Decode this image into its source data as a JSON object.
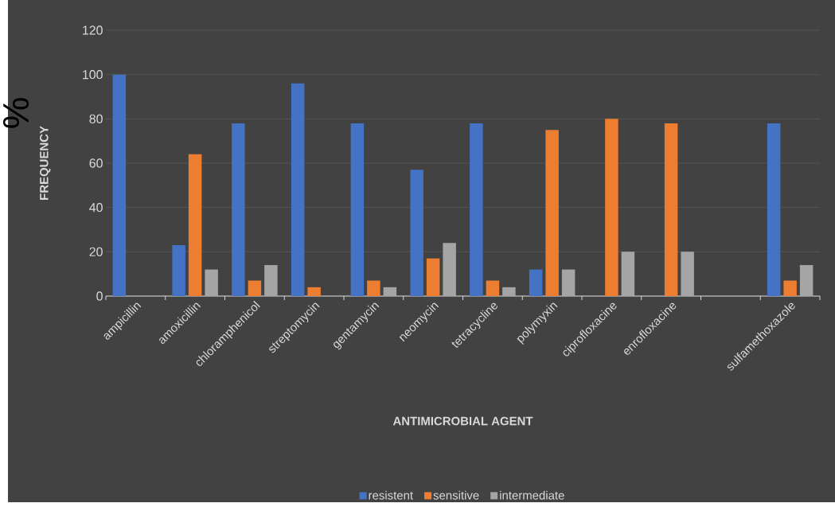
{
  "chart_data": {
    "type": "bar",
    "xlabel": "ANTIMICROBIAL AGENT",
    "ylabel": "FREQUENCY",
    "annotations": [
      "%"
    ],
    "categories": [
      "ampicillin",
      "amoxicillin",
      "chloramphenicol",
      "streptomycin",
      "gentamycin",
      "neomycin",
      "tetracycline",
      "polymyxin",
      "ciprofloxacine",
      "enrofloxacine",
      null,
      "sulfamethoxazole"
    ],
    "series": [
      {
        "name": "resistent",
        "color": "#4472c4",
        "values": [
          100,
          23,
          78,
          96,
          78,
          57,
          78,
          12,
          0,
          0,
          null,
          78
        ]
      },
      {
        "name": "sensitive",
        "color": "#ed7d31",
        "values": [
          0,
          64,
          7,
          4,
          7,
          17,
          7,
          75,
          80,
          78,
          null,
          7
        ]
      },
      {
        "name": "intermediate",
        "color": "#a5a5a5",
        "values": [
          0,
          12,
          14,
          0,
          4,
          24,
          4,
          12,
          20,
          20,
          null,
          14
        ]
      }
    ],
    "ylim": [
      0,
      120
    ],
    "yticks": [
      0,
      20,
      40,
      60,
      80,
      100,
      120
    ],
    "grid": "y",
    "legend": "bottom"
  }
}
